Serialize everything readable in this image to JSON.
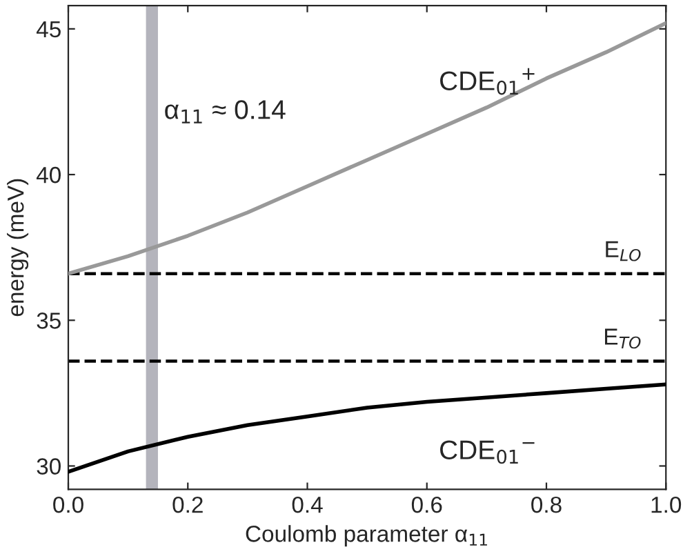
{
  "chart_data": {
    "type": "line",
    "xlabel": "Coulomb parameter α$_{11}$",
    "ylabel": "energy (meV)",
    "x": [
      0,
      0.1,
      0.2,
      0.3,
      0.4,
      0.5,
      0.6,
      0.7,
      0.8,
      0.9,
      1.0
    ],
    "series": [
      {
        "name": "CDE$_{01}$$^{+}$",
        "color": "#999999",
        "values": [
          36.6,
          37.2,
          37.9,
          38.7,
          39.6,
          40.5,
          41.4,
          42.3,
          43.3,
          44.2,
          45.2
        ]
      },
      {
        "name": "CDE$_{01}$$^{−}$",
        "color": "#000000",
        "values": [
          29.8,
          30.5,
          31.0,
          31.4,
          31.7,
          32.0,
          32.2,
          32.35,
          32.5,
          32.65,
          32.8
        ]
      }
    ],
    "xlim": [
      0,
      1
    ],
    "ylim": [
      29.2,
      45.8
    ],
    "xticks": [
      {
        "value": 0,
        "label": "0.0"
      },
      {
        "value": 0.2,
        "label": "0.2"
      },
      {
        "value": 0.4,
        "label": "0.4"
      },
      {
        "value": 0.6,
        "label": "0.6"
      },
      {
        "value": 0.8,
        "label": "0.8"
      },
      {
        "value": 1.0,
        "label": "1.0"
      }
    ],
    "yticks": [
      30,
      35,
      40,
      45
    ],
    "ref_lines": [
      {
        "axis": "y",
        "value": 36.6,
        "label": "E$_{LO}$",
        "line_style": "dashed",
        "color": "#000000"
      },
      {
        "axis": "y",
        "value": 33.6,
        "label": "E$_{TO}$",
        "line_style": "dashed",
        "color": "#000000"
      }
    ],
    "bands": [
      {
        "axis": "x",
        "from": 0.13,
        "to": 0.15,
        "label": "α$_{11}$ ≈ 0.14",
        "color": "#b4b4bc"
      }
    ],
    "grid": false,
    "legend": false,
    "marker": "none",
    "line_style": "solid"
  }
}
